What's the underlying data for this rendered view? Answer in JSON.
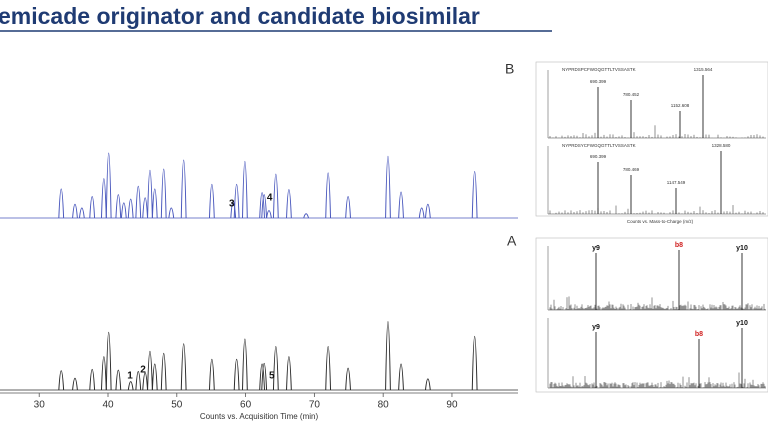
{
  "title": "emicade originator and candidate biosimilar",
  "chart_data": [
    {
      "type": "peaks",
      "panel_label": "B",
      "color": "#4a58bd",
      "xlim": [
        24.3,
        99.6
      ],
      "ylim": [
        0,
        100
      ],
      "x": [
        33.2,
        35.2,
        36.2,
        37.7,
        39.4,
        40.1,
        41.5,
        42.3,
        43.3,
        44.4,
        45.4,
        46.1,
        46.8,
        48.1,
        49.2,
        51.0,
        55.1,
        58.2,
        58.7,
        59.9,
        62.4,
        62.7,
        63.4,
        64.4,
        66.3,
        68.8,
        72.0,
        74.9,
        80.7,
        82.6,
        85.6,
        86.5,
        93.3
      ],
      "values": [
        44,
        20,
        14,
        32,
        60,
        100,
        35,
        22,
        28,
        48,
        30,
        73,
        44,
        75,
        14,
        89,
        51,
        25,
        51,
        87,
        38,
        35,
        10,
        67,
        43,
        5,
        69,
        32,
        95,
        39,
        14,
        20,
        71
      ],
      "annotations": [
        {
          "text": "3",
          "x": 58.0
        },
        {
          "text": "4",
          "x": 63.5
        }
      ]
    },
    {
      "type": "peaks",
      "panel_label": "A",
      "color": "#2b2b2b",
      "xlim": [
        24.3,
        99.6
      ],
      "ylim": [
        0,
        100
      ],
      "xticks": [
        30,
        40,
        50,
        60,
        70,
        80,
        90
      ],
      "xlabel": "Counts vs. Acquisition Time (min)",
      "x": [
        33.2,
        35.2,
        37.7,
        39.4,
        40.1,
        41.5,
        43.3,
        44.4,
        45.4,
        46.1,
        46.8,
        48.1,
        51.0,
        55.1,
        58.7,
        59.9,
        62.4,
        62.7,
        64.4,
        66.3,
        72.0,
        74.9,
        80.7,
        82.6,
        86.5,
        93.3
      ],
      "values": [
        27,
        16,
        29,
        48,
        84,
        28,
        11,
        26,
        24,
        56,
        37,
        53,
        67,
        44,
        44,
        74,
        37,
        38,
        63,
        48,
        63,
        31,
        100,
        37,
        15,
        78
      ],
      "annotations": [
        {
          "text": "1",
          "x": 43.2
        },
        {
          "text": "2",
          "x": 45.1
        },
        {
          "text": "5",
          "x": 63.8
        }
      ]
    }
  ],
  "spectra": {
    "sequence_1": "NYPRDSPCFWGQGTTLTVSSASTK",
    "sequence_2": "NYPRDSYCFWGQGTTLTVSSASTK",
    "panel_b_top_peaks": [
      "690.399",
      "780.452",
      "1152.608",
      "1315.564"
    ],
    "panel_b_bottom_peaks": [
      "690.399",
      "780.469",
      "1147.549",
      "1328.580"
    ],
    "panel_a_top_ions": [
      "y9",
      "b8",
      "y10"
    ],
    "panel_a_bottom_ions": [
      "y9",
      "b8",
      "y10"
    ],
    "xlabel": "Counts vs. Mass-to-Charge (m/z)"
  }
}
